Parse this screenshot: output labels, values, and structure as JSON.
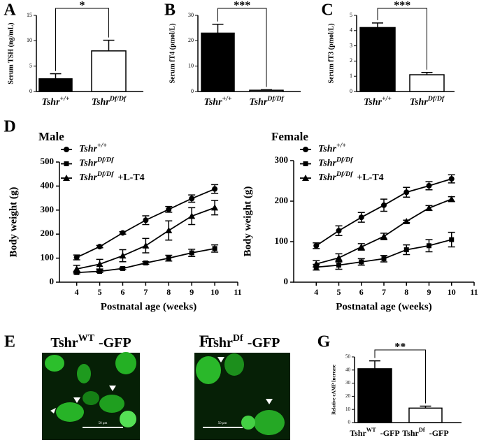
{
  "figure": {
    "panel_labels": [
      "A",
      "B",
      "C",
      "D",
      "E",
      "F",
      "G"
    ],
    "images": [
      {
        "caption": [
          "Tshr",
          "WT",
          "-GFP"
        ],
        "scale_bar": "50 μm"
      },
      {
        "caption": [
          "Tshr",
          "Df",
          "-GFP"
        ],
        "scale_bar": "50 μm"
      }
    ]
  },
  "chart_data": [
    {
      "type": "bar",
      "ylabel": "Serum TSH (ng/mL)",
      "categories": [
        [
          "Tshr",
          "+/+"
        ],
        [
          "Tshr",
          "Df/Df"
        ]
      ],
      "values": [
        2.5,
        8.0
      ],
      "errors": [
        1.0,
        2.1
      ],
      "colors": [
        "#000000",
        "#ffffff"
      ],
      "significance": "*",
      "ylim": [
        0,
        15
      ],
      "yticks": [
        0,
        5,
        10,
        15
      ]
    },
    {
      "type": "bar",
      "ylabel": "Serum fT4 (pmol/L)",
      "categories": [
        [
          "Tshr",
          "+/+"
        ],
        [
          "Tshr",
          "Df/Df"
        ]
      ],
      "values": [
        23,
        0.5
      ],
      "errors": [
        3.5,
        0.2
      ],
      "colors": [
        "#000000",
        "#ffffff"
      ],
      "significance": "***",
      "ylim": [
        0,
        30
      ],
      "yticks": [
        0,
        10,
        20,
        30
      ]
    },
    {
      "type": "bar",
      "ylabel": "Serum fT3 (pmol/L)",
      "categories": [
        [
          "Tshr",
          "+/+"
        ],
        [
          "Tshr",
          "Df/Df"
        ]
      ],
      "values": [
        4.2,
        1.1
      ],
      "errors": [
        0.3,
        0.15
      ],
      "colors": [
        "#000000",
        "#ffffff"
      ],
      "significance": "***",
      "ylim": [
        0,
        5
      ],
      "yticks": [
        0,
        1,
        2,
        3,
        4,
        5
      ]
    },
    {
      "type": "line",
      "title": "Male",
      "xlabel": "Postnatal age (weeks)",
      "ylabel": "Body weight (g)",
      "x": [
        4,
        5,
        6,
        7,
        8,
        9,
        10
      ],
      "xlim": [
        3.25,
        11
      ],
      "xticks": [
        4,
        5,
        6,
        7,
        8,
        9,
        10,
        11
      ],
      "ylim": [
        0,
        500
      ],
      "yticks": [
        0,
        100,
        200,
        300,
        400,
        500
      ],
      "series": [
        {
          "name": [
            "Tshr",
            "+/+"
          ],
          "marker": "circle",
          "values": [
            103,
            148,
            205,
            258,
            303,
            348,
            388
          ],
          "errors": [
            10,
            5,
            5,
            18,
            12,
            15,
            18
          ]
        },
        {
          "name": [
            "Tshr",
            "Df/Df"
          ],
          "marker": "square",
          "values": [
            40,
            45,
            57,
            80,
            100,
            122,
            140
          ],
          "errors": [
            5,
            5,
            5,
            5,
            12,
            15,
            15
          ]
        },
        {
          "name": [
            "Tshr",
            "Df/Df",
            "+L-T4"
          ],
          "marker": "triangle",
          "values": [
            55,
            75,
            110,
            152,
            215,
            275,
            310
          ],
          "errors": [
            15,
            20,
            25,
            30,
            40,
            35,
            30
          ]
        }
      ]
    },
    {
      "type": "line",
      "title": "Female",
      "xlabel": "Postnatal age (weeks)",
      "ylabel": "Body weight (g)",
      "x": [
        4,
        5,
        6,
        7,
        8,
        9,
        10
      ],
      "xlim": [
        3,
        11
      ],
      "xticks": [
        4,
        5,
        6,
        7,
        8,
        9,
        10,
        11
      ],
      "ylim": [
        0,
        300
      ],
      "yticks": [
        0,
        100,
        200,
        300
      ],
      "series": [
        {
          "name": [
            "Tshr",
            "+/+"
          ],
          "marker": "circle",
          "values": [
            90,
            127,
            160,
            190,
            222,
            238,
            255
          ],
          "errors": [
            7,
            12,
            12,
            15,
            12,
            10,
            10
          ]
        },
        {
          "name": [
            "Tshr",
            "Df/Df"
          ],
          "marker": "square",
          "values": [
            37,
            42,
            50,
            58,
            80,
            90,
            105
          ],
          "errors": [
            7,
            10,
            8,
            8,
            12,
            15,
            18
          ]
        },
        {
          "name": [
            "Tshr",
            "Df/Df",
            "+L-T4"
          ],
          "marker": "triangle",
          "values": [
            45,
            60,
            87,
            113,
            150,
            183,
            205
          ],
          "errors": [
            8,
            10,
            8,
            8,
            3,
            6,
            6
          ]
        }
      ]
    },
    {
      "type": "bar",
      "ylabel": "Relative cAMP Increase",
      "categories": [
        [
          "Tshr",
          "WT",
          "-GFP"
        ],
        [
          "Tshr",
          "Df",
          "-GFP"
        ]
      ],
      "values": [
        41,
        11
      ],
      "errors": [
        6,
        1.5
      ],
      "colors": [
        "#000000",
        "#ffffff"
      ],
      "significance": "**",
      "ylim": [
        0,
        50
      ],
      "yticks": [
        0,
        10,
        20,
        30,
        40,
        50
      ]
    }
  ]
}
